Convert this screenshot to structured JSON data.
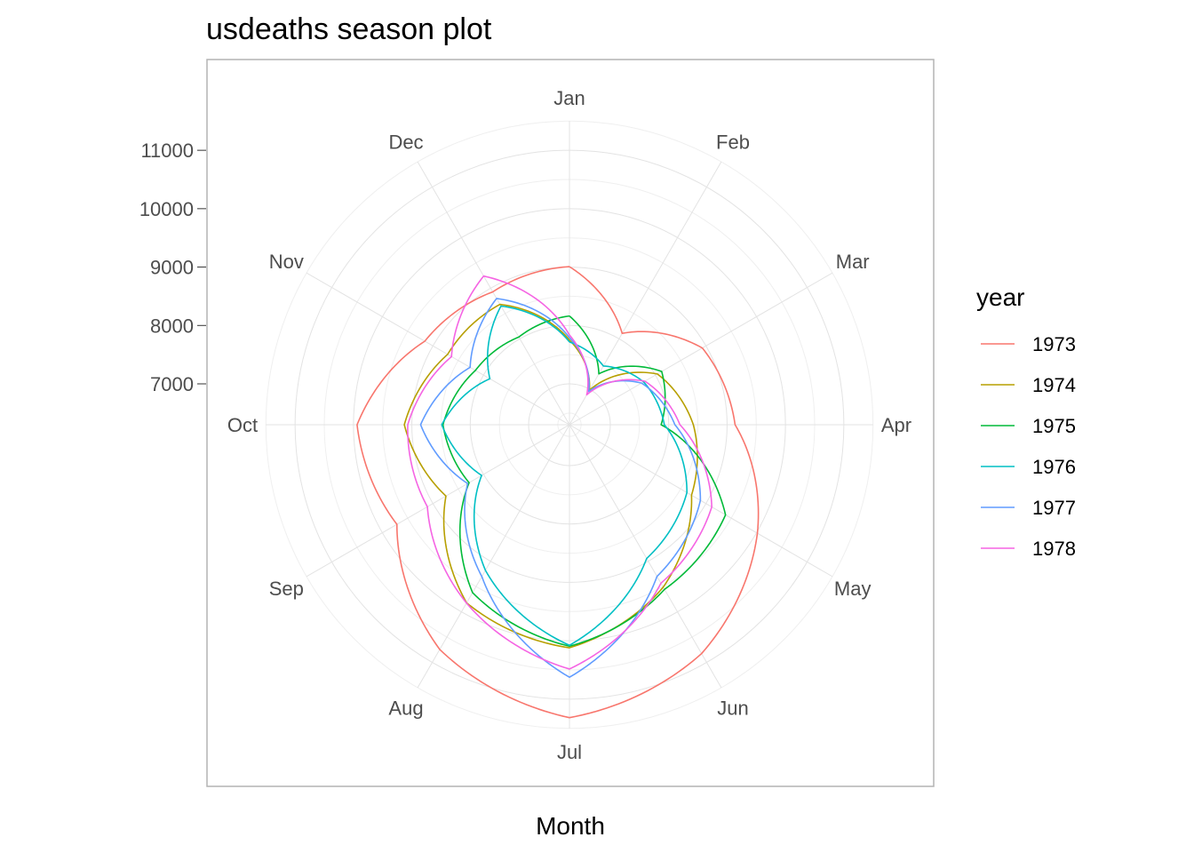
{
  "chart_data": {
    "type": "line",
    "coord": "polar",
    "title": "usdeaths season plot",
    "xlabel": "Month",
    "ylabel": "",
    "categories": [
      "Jan",
      "Feb",
      "Mar",
      "Apr",
      "May",
      "Jun",
      "Jul",
      "Aug",
      "Sep",
      "Oct",
      "Nov",
      "Dec"
    ],
    "y_ticks": [
      7000,
      8000,
      9000,
      10000,
      11000
    ],
    "ylim": [
      6300,
      11900
    ],
    "grid": true,
    "legend_title": "year",
    "legend_position": "right",
    "series": [
      {
        "name": "1973",
        "color": "#F8766D",
        "values": [
          9007,
          8106,
          8928,
          9137,
          10017,
          10826,
          11317,
          10744,
          9713,
          9938,
          9161,
          8927
        ]
      },
      {
        "name": "1974",
        "color": "#B79F00",
        "values": [
          7750,
          6981,
          8038,
          8422,
          8714,
          9512,
          10120,
          9823,
          8743,
          9129,
          8710,
          8680
        ]
      },
      {
        "name": "1975",
        "color": "#00BA38",
        "values": [
          8162,
          7306,
          8124,
          7870,
          9387,
          9556,
          10093,
          9620,
          8285,
          8466,
          8160,
          8034
        ]
      },
      {
        "name": "1976",
        "color": "#00BFC4",
        "values": [
          7717,
          7461,
          7767,
          7925,
          8623,
          8945,
          10078,
          9179,
          8037,
          8488,
          7874,
          8647
        ]
      },
      {
        "name": "1977",
        "color": "#619CFF",
        "values": [
          7792,
          6957,
          7726,
          8106,
          8890,
          9299,
          10625,
          9302,
          8314,
          8850,
          8265,
          8796
        ]
      },
      {
        "name": "1978",
        "color": "#F564E3",
        "values": [
          7836,
          6892,
          7791,
          8192,
          9115,
          9434,
          10484,
          9827,
          9110,
          9070,
          8633,
          9240
        ]
      }
    ]
  }
}
